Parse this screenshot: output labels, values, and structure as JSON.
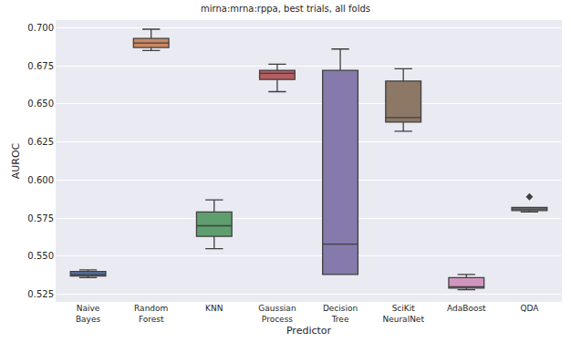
{
  "chart_data": {
    "type": "box",
    "title": "mirna:mrna:rppa, best trials, all folds",
    "x_label": "Predictor",
    "y_label": "AUROC",
    "grid": true,
    "ylim": [
      0.52,
      0.705
    ],
    "yticks": [
      0.525,
      {
        "value": 0.55,
        "label": "0.550"
      },
      0.575,
      {
        "value": 0.6,
        "label": "0.600"
      },
      0.625,
      {
        "value": 0.65,
        "label": "0.650"
      },
      0.675,
      {
        "value": 0.7,
        "label": "0.700"
      }
    ],
    "series": [
      {
        "name": "Naive Bayes",
        "color": "#5875a4",
        "min": 0.536,
        "q1": 0.537,
        "median": 0.538,
        "q3": 0.54,
        "max": 0.541,
        "outliers": []
      },
      {
        "name": "Random Forest",
        "color": "#cc8963",
        "min": 0.685,
        "q1": 0.687,
        "median": 0.69,
        "q3": 0.693,
        "max": 0.699,
        "outliers": []
      },
      {
        "name": "KNN",
        "color": "#5f9e6e",
        "min": 0.555,
        "q1": 0.563,
        "median": 0.57,
        "q3": 0.579,
        "max": 0.587,
        "outliers": []
      },
      {
        "name": "Gaussian Process",
        "color": "#b55d60",
        "min": 0.658,
        "q1": 0.666,
        "median": 0.67,
        "q3": 0.672,
        "max": 0.676,
        "outliers": []
      },
      {
        "name": "Decision Tree",
        "color": "#857aab",
        "min": 0.538,
        "q1": 0.538,
        "median": 0.558,
        "q3": 0.672,
        "max": 0.686,
        "outliers": []
      },
      {
        "name": "SciKit NeuralNet",
        "color": "#8d7866",
        "min": 0.632,
        "q1": 0.638,
        "median": 0.641,
        "q3": 0.665,
        "max": 0.673,
        "outliers": []
      },
      {
        "name": "AdaBoost",
        "color": "#d095bf",
        "min": 0.528,
        "q1": 0.529,
        "median": 0.53,
        "q3": 0.536,
        "max": 0.538,
        "outliers": []
      },
      {
        "name": "QDA",
        "color": "#8c8c8c",
        "min": 0.579,
        "q1": 0.58,
        "median": 0.581,
        "q3": 0.582,
        "max": 0.582,
        "outliers": [
          0.589
        ],
        "marker": "diamond"
      }
    ]
  }
}
